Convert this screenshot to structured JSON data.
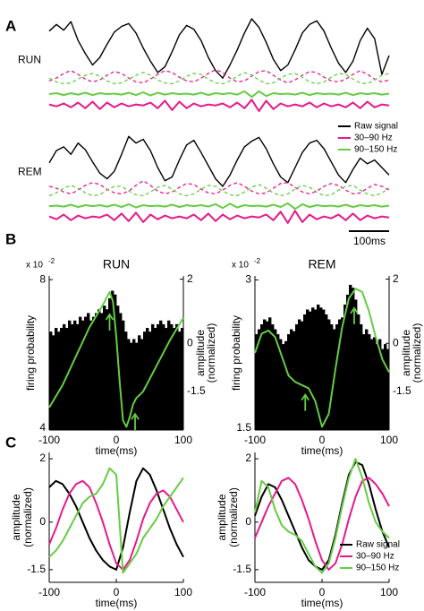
{
  "panel_labels": [
    "A",
    "B",
    "C"
  ],
  "chart_data": [
    {
      "type": "traces",
      "title": "RUN",
      "ylim": [
        0,
        10
      ],
      "legend": "below-right",
      "series": [
        {
          "name": "Raw signal",
          "color": "#000000",
          "values": [
            8.6,
            9.3,
            8.7,
            9.6,
            7.6,
            6.2,
            5.0,
            5.8,
            7.2,
            8.5,
            9.1,
            9.4,
            8.4,
            6.8,
            5.4,
            4.2,
            4.8,
            6.4,
            8.2,
            9.2,
            8.8,
            7.6,
            5.8,
            4.4,
            3.6,
            5.0,
            6.6,
            8.4,
            9.9,
            9.0,
            7.4,
            5.6,
            4.4,
            5.0,
            6.6,
            8.4,
            9.3,
            9.7,
            8.6,
            6.8,
            5.2,
            4.2,
            5.4,
            7.6,
            8.9,
            7.8,
            4.0,
            6.0
          ]
        },
        {
          "name": "30–90 Hz",
          "color": "#e6198a",
          "values": [
            0.8,
            0.6,
            0.9,
            0.5,
            1.0,
            0.4,
            1.1,
            0.3,
            1.0,
            0.5,
            0.9,
            0.6,
            0.8,
            0.7,
            1.0,
            0.4,
            1.2,
            0.2,
            1.1,
            0.4,
            0.9,
            0.6,
            0.8,
            0.7,
            0.9,
            0.5,
            1.0,
            0.4,
            1.3,
            0.1,
            1.2,
            0.3,
            0.9,
            0.6,
            0.8,
            0.6,
            1.0,
            0.5,
            0.9,
            0.6,
            0.8,
            0.5,
            1.0,
            0.4,
            1.1,
            0.5,
            0.8,
            0.7
          ]
        },
        {
          "name": "90–150 Hz",
          "color": "#66cc44",
          "values": [
            1.9,
            2.0,
            1.8,
            2.0,
            1.85,
            2.05,
            1.8,
            2.0,
            1.9,
            1.95,
            1.85,
            2.05,
            1.8,
            2.1,
            1.75,
            2.05,
            1.85,
            2.0,
            1.9,
            1.95,
            1.85,
            2.05,
            1.8,
            2.0,
            1.9,
            2.0,
            1.85,
            2.2,
            1.6,
            2.2,
            1.7,
            2.0,
            1.9,
            1.95,
            1.85,
            2.05,
            1.8,
            2.0,
            1.9,
            1.95,
            1.85,
            2.05,
            1.8,
            2.0,
            1.9,
            2.0,
            1.85,
            1.95
          ]
        },
        {
          "color": "#e6198a",
          "style": "dashed",
          "values": [
            3.3,
            3.6,
            4.1,
            4.4,
            4.0,
            3.5,
            3.2,
            3.4,
            3.9,
            4.3,
            4.1,
            3.6,
            3.2,
            3.1,
            3.5,
            4.0,
            4.4,
            4.2,
            3.7,
            3.3,
            3.2,
            3.6,
            4.1,
            4.5,
            4.2,
            3.6,
            3.2,
            3.3,
            3.8,
            4.3,
            4.4,
            3.9,
            3.4,
            3.1,
            3.4,
            3.9,
            4.3,
            4.2,
            3.7,
            3.3,
            3.2,
            3.5,
            4.0,
            4.4,
            4.0,
            3.5,
            3.2,
            3.4
          ]
        },
        {
          "color": "#66cc44",
          "style": "dashed",
          "values": [
            3.6,
            3.2,
            3.0,
            3.1,
            3.5,
            3.9,
            4.1,
            3.8,
            3.3,
            3.0,
            3.1,
            3.5,
            3.9,
            4.2,
            3.9,
            3.4,
            3.1,
            3.0,
            3.3,
            3.8,
            4.1,
            4.0,
            3.5,
            3.1,
            3.0,
            3.3,
            3.8,
            4.2,
            3.9,
            3.4,
            3.0,
            3.1,
            3.6,
            4.0,
            4.1,
            3.7,
            3.2,
            3.0,
            3.2,
            3.7,
            4.1,
            4.0,
            3.5,
            3.1,
            3.0,
            3.4,
            3.9,
            4.1
          ]
        }
      ]
    },
    {
      "type": "traces",
      "title": "REM",
      "ylim": [
        0,
        10
      ],
      "scalebar_label": "100ms",
      "series": [
        {
          "color": "#000000",
          "values": [
            6.5,
            7.8,
            8.2,
            7.4,
            8.6,
            7.9,
            6.6,
            5.4,
            4.8,
            5.6,
            7.4,
            9.3,
            8.6,
            9.0,
            7.8,
            6.0,
            4.6,
            5.0,
            6.8,
            8.4,
            8.9,
            7.6,
            6.2,
            4.8,
            4.0,
            5.2,
            6.8,
            8.2,
            8.8,
            9.2,
            8.0,
            6.4,
            5.0,
            4.4,
            6.0,
            7.6,
            8.6,
            8.9,
            8.0,
            6.6,
            5.2,
            4.4,
            5.8,
            7.0,
            6.4,
            6.8,
            6.0,
            5.2
          ]
        },
        {
          "color": "#e6198a",
          "values": [
            0.8,
            0.5,
            1.0,
            0.4,
            0.9,
            0.6,
            0.8,
            0.7,
            1.0,
            0.4,
            1.1,
            0.3,
            1.2,
            0.2,
            1.0,
            0.5,
            0.9,
            0.6,
            0.8,
            0.6,
            1.0,
            0.4,
            1.1,
            0.3,
            1.0,
            0.5,
            0.9,
            0.6,
            0.8,
            0.7,
            1.0,
            0.4,
            1.3,
            0.1,
            1.4,
            0.2,
            1.0,
            0.5,
            0.8,
            0.6,
            1.0,
            0.4,
            1.1,
            0.4,
            0.9,
            0.6,
            0.8,
            0.7
          ]
        },
        {
          "color": "#66cc44",
          "values": [
            1.9,
            1.95,
            1.85,
            2.05,
            1.8,
            2.0,
            1.9,
            2.0,
            1.85,
            2.05,
            1.8,
            2.1,
            1.75,
            2.0,
            1.9,
            1.95,
            1.85,
            2.05,
            1.8,
            2.0,
            1.9,
            2.0,
            1.85,
            2.1,
            1.7,
            2.15,
            1.75,
            2.0,
            1.9,
            1.95,
            1.85,
            2.05,
            1.8,
            2.2,
            1.6,
            2.1,
            1.8,
            2.0,
            1.9,
            1.95,
            1.85,
            2.05,
            1.8,
            2.0,
            1.9,
            2.0,
            1.85,
            1.95
          ]
        },
        {
          "color": "#e6198a",
          "style": "dashed",
          "values": [
            4.0,
            3.8,
            3.4,
            3.2,
            3.6,
            4.1,
            4.4,
            4.2,
            3.7,
            3.3,
            3.2,
            3.5,
            4.1,
            4.6,
            4.1,
            3.5,
            3.2,
            3.4,
            3.9,
            4.3,
            4.2,
            3.7,
            3.3,
            3.2,
            3.6,
            4.1,
            4.4,
            4.0,
            3.5,
            3.2,
            3.3,
            3.8,
            4.3,
            4.4,
            3.9,
            3.4,
            3.2,
            3.5,
            4.0,
            4.3,
            4.1,
            3.6,
            3.2,
            3.3,
            3.8,
            4.2,
            4.0,
            3.6
          ]
        },
        {
          "color": "#66cc44",
          "style": "dashed",
          "values": [
            3.0,
            3.3,
            3.8,
            4.1,
            3.8,
            3.3,
            3.0,
            3.1,
            3.6,
            4.0,
            4.0,
            3.5,
            3.1,
            3.0,
            3.4,
            3.9,
            4.1,
            3.7,
            3.2,
            3.0,
            3.2,
            3.7,
            4.1,
            4.0,
            3.5,
            3.1,
            3.0,
            3.4,
            3.9,
            4.2,
            3.8,
            3.3,
            3.0,
            3.2,
            3.7,
            4.1,
            3.9,
            3.4,
            3.0,
            3.1,
            3.6,
            4.0,
            4.1,
            3.6,
            3.2,
            3.0,
            3.3,
            3.8
          ]
        }
      ]
    },
    {
      "type": "histogram",
      "title": "RUN",
      "y_multiplier": {
        "base": "x 10",
        "exponent": "-2"
      },
      "ylabel": "firing probability",
      "xlabel": "time(ms)",
      "y2label": [
        "amplitude",
        "(normalized)"
      ],
      "bins": [
        -100,
        -96,
        -92,
        -88,
        -84,
        -80,
        -76,
        -72,
        -68,
        -64,
        -60,
        -56,
        -52,
        -48,
        -44,
        -40,
        -36,
        -32,
        -28,
        -24,
        -20,
        -16,
        -12,
        -8,
        -4,
        0,
        4,
        8,
        12,
        16,
        20,
        24,
        28,
        32,
        36,
        40,
        44,
        48,
        52,
        56,
        60,
        64,
        68,
        72,
        76,
        80,
        84,
        88,
        92,
        96,
        100
      ],
      "values": [
        6.6,
        6.5,
        6.7,
        6.6,
        6.7,
        6.8,
        6.7,
        6.9,
        6.8,
        6.9,
        6.8,
        7.0,
        6.9,
        7.0,
        7.1,
        6.9,
        7.0,
        7.1,
        7.2,
        7.1,
        7.3,
        7.2,
        7.5,
        7.7,
        7.6,
        7.3,
        7.1,
        6.9,
        6.6,
        6.4,
        6.3,
        6.4,
        6.3,
        6.5,
        6.4,
        6.6,
        6.7,
        6.6,
        6.8,
        6.7,
        6.8,
        6.9,
        6.8,
        6.7,
        6.9,
        6.8,
        6.7,
        6.8,
        6.6,
        6.7
      ],
      "color": "#000000",
      "xlim": [
        -100,
        100
      ],
      "xticks": [
        -100,
        0,
        100
      ],
      "ylim": [
        3.95,
        8.1
      ],
      "yticks": [
        8,
        4
      ],
      "y2lim": [
        -2.7,
        2.1
      ],
      "y2ticks": [
        2,
        0,
        -1.5
      ],
      "series": [
        {
          "color": "#66cc44",
          "axis": "y2",
          "x": [
            -100,
            -80,
            -60,
            -40,
            -20,
            -10,
            -5,
            0,
            5,
            10,
            15,
            20,
            25,
            30,
            40,
            60,
            80,
            100
          ],
          "values": [
            -2.0,
            -1.3,
            -0.4,
            0.5,
            1.2,
            1.6,
            1.3,
            0.2,
            -1.2,
            -2.4,
            -2.6,
            -2.3,
            -1.9,
            -1.7,
            -1.5,
            -0.7,
            0.1,
            0.8
          ]
        }
      ],
      "arrows": [
        {
          "x": -10,
          "y": 0.9
        },
        {
          "x": 28,
          "y": -2.2
        }
      ]
    },
    {
      "type": "histogram",
      "title": "REM",
      "y_multiplier": {
        "base": "x 10",
        "exponent": "-2"
      },
      "ylabel": "firing probability",
      "xlabel": "time(ms)",
      "y2label": [
        "amplitude",
        "(normalized)"
      ],
      "bins": [
        -100,
        -96,
        -92,
        -88,
        -84,
        -80,
        -76,
        -72,
        -68,
        -64,
        -60,
        -56,
        -52,
        -48,
        -44,
        -40,
        -36,
        -32,
        -28,
        -24,
        -20,
        -16,
        -12,
        -8,
        -4,
        0,
        4,
        8,
        12,
        16,
        20,
        24,
        28,
        32,
        36,
        40,
        44,
        48,
        52,
        56,
        60,
        64,
        68,
        72,
        76,
        80,
        84,
        88,
        92,
        96,
        100
      ],
      "values": [
        2.45,
        2.5,
        2.55,
        2.6,
        2.58,
        2.62,
        2.55,
        2.5,
        2.45,
        2.4,
        2.35,
        2.38,
        2.45,
        2.5,
        2.48,
        2.55,
        2.6,
        2.58,
        2.65,
        2.7,
        2.68,
        2.72,
        2.7,
        2.75,
        2.72,
        2.7,
        2.65,
        2.6,
        2.55,
        2.5,
        2.55,
        2.6,
        2.62,
        2.75,
        2.85,
        2.95,
        2.92,
        2.8,
        2.65,
        2.55,
        2.45,
        2.5,
        2.45,
        2.4,
        2.42,
        2.35,
        2.4,
        2.3,
        2.35,
        2.3
      ],
      "color": "#000000",
      "xlim": [
        -100,
        100
      ],
      "xticks": [
        -100,
        0,
        100
      ],
      "ylim": [
        1.48,
        3.04
      ],
      "yticks": [
        3,
        1.5
      ],
      "y2lim": [
        -2.7,
        2.1
      ],
      "y2ticks": [
        2,
        0,
        -1.5
      ],
      "series": [
        {
          "color": "#66cc44",
          "axis": "y2",
          "x": [
            -100,
            -90,
            -80,
            -70,
            -60,
            -50,
            -40,
            -30,
            -20,
            -10,
            0,
            10,
            20,
            30,
            40,
            50,
            60,
            70,
            80,
            90,
            100
          ],
          "values": [
            -0.3,
            0.3,
            0.4,
            0.2,
            -0.4,
            -1.0,
            -1.2,
            -1.3,
            -1.4,
            -1.8,
            -2.6,
            -2.2,
            -0.8,
            0.5,
            1.4,
            1.7,
            1.6,
            1.0,
            0.2,
            -0.5,
            -0.9
          ]
        }
      ],
      "arrows": [
        {
          "x": -25,
          "y": -1.6
        },
        {
          "x": 48,
          "y": 1.1
        }
      ]
    },
    {
      "type": "line",
      "ylabel": [
        "amplitude",
        "(normalized)"
      ],
      "xlabel": "time(ms)",
      "x": [
        -100,
        -90,
        -80,
        -70,
        -60,
        -50,
        -40,
        -30,
        -20,
        -10,
        0,
        10,
        20,
        30,
        40,
        50,
        60,
        70,
        80,
        90,
        100
      ],
      "xlim": [
        -100,
        100
      ],
      "xticks": [
        -100,
        0,
        100
      ],
      "ylim": [
        -1.9,
        2.2
      ],
      "yticks": [
        2,
        0,
        -1.5
      ],
      "series": [
        {
          "color": "#000000",
          "values": [
            1.1,
            1.3,
            1.2,
            0.9,
            0.5,
            0.0,
            -0.5,
            -0.9,
            -1.2,
            -1.4,
            -1.5,
            -0.8,
            0.3,
            1.3,
            1.7,
            1.5,
            1.0,
            0.4,
            -0.2,
            -0.7,
            -1.1
          ]
        },
        {
          "color": "#e6198a",
          "values": [
            -0.7,
            -0.2,
            0.4,
            0.9,
            1.2,
            1.3,
            1.1,
            0.6,
            0.0,
            -0.7,
            -1.3,
            -1.5,
            -1.2,
            -0.6,
            0.1,
            0.6,
            0.9,
            1.0,
            0.8,
            0.4,
            0.0
          ]
        },
        {
          "color": "#66cc44",
          "values": [
            -1.1,
            -0.9,
            -0.6,
            -0.2,
            0.2,
            0.6,
            0.8,
            0.9,
            1.2,
            1.7,
            1.5,
            -1.6,
            -1.3,
            -1.0,
            -0.5,
            -0.2,
            0.1,
            0.5,
            0.8,
            1.1,
            1.4
          ]
        }
      ]
    },
    {
      "type": "line",
      "ylabel": [
        "amplitude",
        "(normalized)"
      ],
      "xlabel": "time(ms)",
      "legend": "lower-right",
      "x": [
        -100,
        -90,
        -80,
        -70,
        -60,
        -50,
        -40,
        -30,
        -20,
        -10,
        0,
        10,
        20,
        30,
        40,
        50,
        60,
        70,
        80,
        90,
        100
      ],
      "xlim": [
        -100,
        100
      ],
      "xticks": [
        -100,
        0,
        100
      ],
      "ylim": [
        -1.9,
        2.2
      ],
      "yticks": [
        2,
        0,
        -1.5
      ],
      "series": [
        {
          "name": "Raw signal",
          "color": "#000000",
          "values": [
            0.2,
            0.8,
            1.2,
            1.1,
            0.7,
            0.2,
            -0.3,
            -0.8,
            -1.2,
            -1.4,
            -1.5,
            -1.2,
            -0.4,
            0.6,
            1.5,
            1.9,
            1.8,
            1.2,
            0.4,
            -0.3,
            -0.8
          ]
        },
        {
          "name": "30–90 Hz",
          "color": "#e6198a",
          "values": [
            -0.5,
            0.0,
            0.5,
            0.9,
            1.3,
            1.4,
            1.2,
            0.7,
            0.1,
            -0.6,
            -1.2,
            -1.5,
            -1.3,
            -0.7,
            0.1,
            0.8,
            1.3,
            1.4,
            1.2,
            0.9,
            0.5
          ]
        },
        {
          "name": "90–150 Hz",
          "color": "#66cc44",
          "values": [
            0.3,
            1.3,
            1.1,
            0.4,
            -0.1,
            -0.3,
            -0.4,
            -0.6,
            -1.0,
            -1.4,
            -1.6,
            -1.3,
            -0.5,
            0.5,
            1.4,
            2.0,
            1.4,
            0.6,
            0.0,
            -0.3,
            -0.5
          ]
        }
      ]
    }
  ]
}
